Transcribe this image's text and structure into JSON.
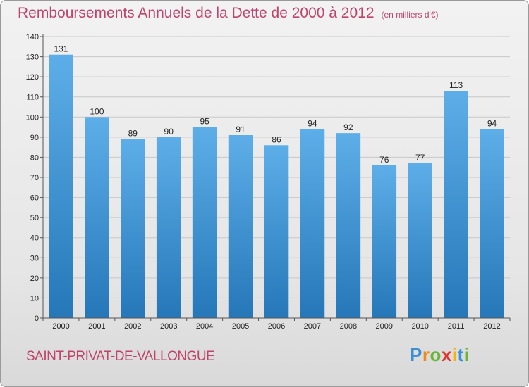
{
  "header": {
    "title": "Remboursements Annuels de la Dette de 2000 à 2012",
    "unit": "(en milliers d'€)"
  },
  "footer": {
    "commune": "SAINT-PRIVAT-DE-VALLONGUE",
    "logo_letters": [
      "P",
      "r",
      "o",
      "x",
      "i",
      "t",
      "i"
    ],
    "logo_colors": [
      "#3a8fd6",
      "#f08a1c",
      "#6bb536",
      "#e2332b",
      "#f5b400",
      "#3a8fd6",
      "#6bb536"
    ]
  },
  "chart_data": {
    "type": "bar",
    "categories": [
      "2000",
      "2001",
      "2002",
      "2003",
      "2004",
      "2005",
      "2006",
      "2007",
      "2008",
      "2009",
      "2010",
      "2011",
      "2012"
    ],
    "values": [
      131,
      100,
      89,
      90,
      95,
      91,
      86,
      94,
      92,
      76,
      77,
      113,
      94
    ],
    "yticks": [
      0,
      10,
      20,
      30,
      40,
      50,
      60,
      70,
      80,
      90,
      100,
      110,
      120,
      130,
      140
    ],
    "ylim": [
      0,
      140
    ],
    "grid": true,
    "bar_color_top": "#5daee8",
    "bar_color_bottom": "#2577b8"
  }
}
